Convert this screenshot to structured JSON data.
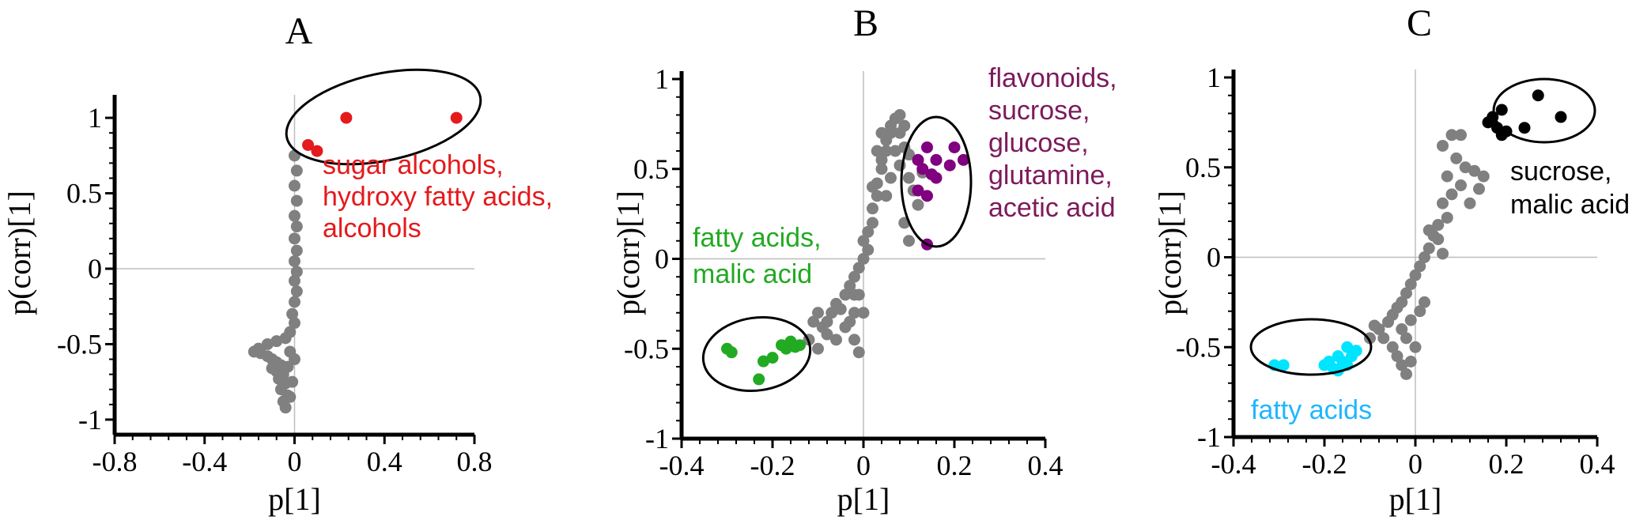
{
  "chart_data": [
    {
      "type": "scatter",
      "title": "A",
      "xlabel": "p[1]",
      "ylabel": "p(corr)[1]",
      "xlim": [
        -0.8,
        0.8
      ],
      "ylim": [
        -1.1,
        1.1
      ],
      "xticks": [
        -0.8,
        -0.4,
        0,
        0.4,
        0.8
      ],
      "xtick_labels": [
        "-0.8",
        "-0.4",
        "0",
        "0.4",
        "0.8"
      ],
      "yticks": [
        -1,
        -0.5,
        0,
        0.5,
        1
      ],
      "ytick_labels": [
        "-1",
        "-0.5",
        "0",
        "0.5",
        "1"
      ],
      "grid": false,
      "series": [
        {
          "color": "#808080",
          "points": [
            [
              0,
              0.75
            ],
            [
              0.01,
              0.65
            ],
            [
              0,
              0.55
            ],
            [
              0.01,
              0.45
            ],
            [
              0,
              0.35
            ],
            [
              0.01,
              0.28
            ],
            [
              0,
              0.2
            ],
            [
              0.01,
              0.12
            ],
            [
              0,
              0.05
            ],
            [
              0.01,
              -0.02
            ],
            [
              0,
              -0.08
            ],
            [
              0.01,
              -0.15
            ],
            [
              0,
              -0.22
            ],
            [
              -0.01,
              -0.3
            ],
            [
              0,
              -0.36
            ],
            [
              -0.02,
              -0.42
            ],
            [
              -0.04,
              -0.46
            ],
            [
              -0.08,
              -0.48
            ],
            [
              -0.12,
              -0.5
            ],
            [
              -0.16,
              -0.53
            ],
            [
              -0.18,
              -0.55
            ],
            [
              -0.15,
              -0.56
            ],
            [
              -0.12,
              -0.58
            ],
            [
              -0.1,
              -0.6
            ],
            [
              -0.08,
              -0.62
            ],
            [
              -0.06,
              -0.64
            ],
            [
              -0.1,
              -0.66
            ],
            [
              -0.08,
              -0.68
            ],
            [
              -0.05,
              -0.7
            ],
            [
              -0.07,
              -0.73
            ],
            [
              -0.04,
              -0.76
            ],
            [
              -0.06,
              -0.8
            ],
            [
              -0.03,
              -0.84
            ],
            [
              -0.05,
              -0.88
            ],
            [
              -0.04,
              -0.92
            ],
            [
              0,
              -0.6
            ],
            [
              -0.02,
              -0.55
            ],
            [
              -0.03,
              -0.65
            ],
            [
              -0.01,
              -0.75
            ],
            [
              -0.02,
              -0.85
            ]
          ]
        },
        {
          "color": "#e41a1c",
          "points": [
            [
              0.23,
              1.0
            ],
            [
              0.72,
              1.0
            ],
            [
              0.06,
              0.82
            ],
            [
              0.1,
              0.78
            ]
          ]
        }
      ],
      "annotations": [
        {
          "lines": [
            "sugar alcohols,",
            "hydroxy fatty acids,",
            "alcohols"
          ],
          "color": "#e41a1c"
        }
      ]
    },
    {
      "type": "scatter",
      "title": "B",
      "xlabel": "p[1]",
      "ylabel": "p(corr)[1]",
      "xlim": [
        -0.4,
        0.4
      ],
      "ylim": [
        -1,
        1
      ],
      "xticks": [
        -0.4,
        -0.2,
        0,
        0.2,
        0.4
      ],
      "xtick_labels": [
        "-0.4",
        "-0.2",
        "0",
        "0.2",
        "0.4"
      ],
      "yticks": [
        -1,
        -0.5,
        0,
        0.5,
        1
      ],
      "ytick_labels": [
        "-1",
        "-0.5",
        "0",
        "0.5",
        "1"
      ],
      "grid": false,
      "series": [
        {
          "color": "#808080",
          "points": [
            [
              -0.11,
              -0.35
            ],
            [
              -0.1,
              -0.3
            ],
            [
              -0.09,
              -0.38
            ],
            [
              -0.08,
              -0.42
            ],
            [
              -0.07,
              -0.3
            ],
            [
              -0.06,
              -0.25
            ],
            [
              -0.05,
              -0.28
            ],
            [
              -0.04,
              -0.2
            ],
            [
              -0.03,
              -0.15
            ],
            [
              -0.02,
              -0.1
            ],
            [
              -0.02,
              -0.2
            ],
            [
              -0.01,
              -0.05
            ],
            [
              0,
              0
            ],
            [
              0.01,
              0.05
            ],
            [
              0,
              0.1
            ],
            [
              0.01,
              0.15
            ],
            [
              0.02,
              0.2
            ],
            [
              0.02,
              0.28
            ],
            [
              0.03,
              0.35
            ],
            [
              0.03,
              0.42
            ],
            [
              0.04,
              0.5
            ],
            [
              0.04,
              0.55
            ],
            [
              0.05,
              0.6
            ],
            [
              0.05,
              0.66
            ],
            [
              0.06,
              0.7
            ],
            [
              0.06,
              0.74
            ],
            [
              0.07,
              0.78
            ],
            [
              0.08,
              0.8
            ],
            [
              0.09,
              0.62
            ],
            [
              0.1,
              0.58
            ],
            [
              0.08,
              0.52
            ],
            [
              0.1,
              0.45
            ],
            [
              0.11,
              0.38
            ],
            [
              0.12,
              0.3
            ],
            [
              0.09,
              0.2
            ],
            [
              0.1,
              0.1
            ],
            [
              0.12,
              0.55
            ],
            [
              0.13,
              0.48
            ],
            [
              -0.12,
              -0.45
            ],
            [
              -0.1,
              -0.5
            ],
            [
              -0.08,
              -0.35
            ],
            [
              -0.06,
              -0.45
            ],
            [
              -0.04,
              -0.38
            ],
            [
              -0.02,
              -0.45
            ],
            [
              -0.01,
              -0.52
            ],
            [
              -0.02,
              -0.3
            ],
            [
              -0.03,
              -0.35
            ],
            [
              0,
              -0.3
            ],
            [
              -0.01,
              -0.2
            ],
            [
              0.02,
              0.4
            ],
            [
              0.03,
              0.6
            ],
            [
              0.04,
              0.7
            ],
            [
              0.07,
              0.6
            ],
            [
              0.06,
              0.45
            ],
            [
              0.05,
              0.35
            ],
            [
              0.08,
              0.7
            ],
            [
              0.09,
              0.74
            ]
          ]
        },
        {
          "color": "#800080",
          "points": [
            [
              0.12,
              0.55
            ],
            [
              0.13,
              0.5
            ],
            [
              0.14,
              0.62
            ],
            [
              0.15,
              0.47
            ],
            [
              0.16,
              0.45
            ],
            [
              0.12,
              0.38
            ],
            [
              0.14,
              0.35
            ],
            [
              0.19,
              0.52
            ],
            [
              0.2,
              0.62
            ],
            [
              0.22,
              0.55
            ],
            [
              0.14,
              0.08
            ],
            [
              0.16,
              0.55
            ]
          ]
        },
        {
          "color": "#22aa22",
          "points": [
            [
              -0.3,
              -0.5
            ],
            [
              -0.29,
              -0.52
            ],
            [
              -0.2,
              -0.55
            ],
            [
              -0.18,
              -0.48
            ],
            [
              -0.17,
              -0.5
            ],
            [
              -0.16,
              -0.46
            ],
            [
              -0.15,
              -0.49
            ],
            [
              -0.14,
              -0.48
            ],
            [
              -0.22,
              -0.57
            ],
            [
              -0.23,
              -0.67
            ]
          ]
        }
      ],
      "annotations": [
        {
          "lines": [
            "flavonoids,",
            "sucrose,",
            "glucose,",
            "glutamine,",
            "acetic acid"
          ],
          "color": "#7d1a5c"
        },
        {
          "lines": [
            "fatty acids,",
            "malic acid"
          ],
          "color": "#22aa22"
        }
      ]
    },
    {
      "type": "scatter",
      "title": "C",
      "xlabel": "p[1]",
      "ylabel": "p(corr)[1]",
      "xlim": [
        -0.4,
        0.4
      ],
      "ylim": [
        -1,
        1
      ],
      "xticks": [
        -0.4,
        -0.2,
        0,
        0.2,
        0.4
      ],
      "xtick_labels": [
        "-0.4",
        "-0.2",
        "0",
        "0.2",
        "0.4"
      ],
      "yticks": [
        -1,
        -0.5,
        0,
        0.5,
        1
      ],
      "ytick_labels": [
        "-1",
        "-0.5",
        "0",
        "0.5",
        "1"
      ],
      "grid": false,
      "series": [
        {
          "color": "#808080",
          "points": [
            [
              0.08,
              0.68
            ],
            [
              0.1,
              0.68
            ],
            [
              0.09,
              0.55
            ],
            [
              0.11,
              0.5
            ],
            [
              0.13,
              0.48
            ],
            [
              0.1,
              0.4
            ],
            [
              0.08,
              0.35
            ],
            [
              0.06,
              0.3
            ],
            [
              0.07,
              0.22
            ],
            [
              0.05,
              0.18
            ],
            [
              0.04,
              0.12
            ],
            [
              0.03,
              0.05
            ],
            [
              0.02,
              0
            ],
            [
              0.01,
              -0.05
            ],
            [
              0,
              -0.1
            ],
            [
              -0.01,
              -0.15
            ],
            [
              -0.02,
              -0.2
            ],
            [
              -0.03,
              -0.25
            ],
            [
              -0.04,
              -0.28
            ],
            [
              -0.05,
              -0.32
            ],
            [
              -0.06,
              -0.36
            ],
            [
              -0.08,
              -0.4
            ],
            [
              -0.1,
              -0.45
            ],
            [
              -0.09,
              -0.38
            ],
            [
              -0.07,
              -0.45
            ],
            [
              -0.05,
              -0.5
            ],
            [
              -0.04,
              -0.55
            ],
            [
              -0.03,
              -0.6
            ],
            [
              -0.02,
              -0.65
            ],
            [
              -0.01,
              -0.58
            ],
            [
              0,
              -0.5
            ],
            [
              -0.02,
              -0.45
            ],
            [
              0.15,
              0.45
            ],
            [
              0.14,
              0.38
            ],
            [
              0.12,
              0.3
            ],
            [
              0.05,
              0.1
            ],
            [
              0.06,
              0.02
            ],
            [
              0.03,
              0.15
            ],
            [
              -0.03,
              -0.4
            ],
            [
              -0.01,
              -0.35
            ],
            [
              0.01,
              -0.3
            ],
            [
              0.02,
              -0.25
            ],
            [
              0.07,
              0.45
            ],
            [
              0.06,
              0.62
            ]
          ]
        },
        {
          "color": "#00e5ff",
          "points": [
            [
              -0.31,
              -0.6
            ],
            [
              -0.29,
              -0.6
            ],
            [
              -0.2,
              -0.6
            ],
            [
              -0.19,
              -0.58
            ],
            [
              -0.18,
              -0.62
            ],
            [
              -0.17,
              -0.55
            ],
            [
              -0.16,
              -0.58
            ],
            [
              -0.15,
              -0.5
            ],
            [
              -0.14,
              -0.55
            ],
            [
              -0.13,
              -0.52
            ],
            [
              -0.17,
              -0.63
            ],
            [
              -0.15,
              -0.6
            ]
          ]
        },
        {
          "color": "#000000",
          "points": [
            [
              0.17,
              0.78
            ],
            [
              0.19,
              0.82
            ],
            [
              0.18,
              0.72
            ],
            [
              0.2,
              0.7
            ],
            [
              0.24,
              0.72
            ],
            [
              0.27,
              0.9
            ],
            [
              0.32,
              0.78
            ],
            [
              0.16,
              0.75
            ],
            [
              0.19,
              0.68
            ]
          ]
        }
      ],
      "annotations": [
        {
          "lines": [
            "sucrose,",
            "malic acid"
          ],
          "color": "#000000"
        },
        {
          "lines": [
            "fatty acids"
          ],
          "color": "#1fb6ff"
        }
      ]
    }
  ]
}
